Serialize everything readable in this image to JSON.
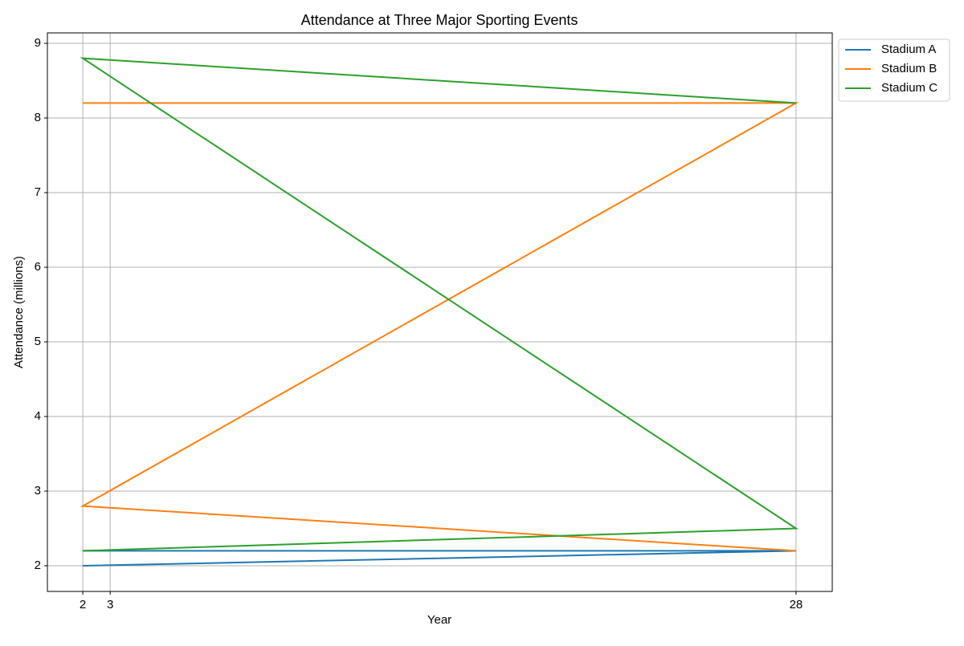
{
  "chart_data": {
    "type": "line",
    "title": "Attendance at Three Major Sporting Events",
    "x_label": "Year",
    "y_label": "Attendance (millions)",
    "series": [
      {
        "name": "Stadium A",
        "color": "#1f77b4",
        "x": [
          2,
          28,
          2,
          28
        ],
        "values": [
          2.0,
          2.2,
          2.2,
          2.2
        ]
      },
      {
        "name": "Stadium B",
        "color": "#ff7f0e",
        "x": [
          2,
          28,
          2,
          28
        ],
        "values": [
          8.2,
          8.2,
          2.8,
          2.2
        ]
      },
      {
        "name": "Stadium C",
        "color": "#2ca02c",
        "x": [
          28,
          2,
          28,
          2
        ],
        "values": [
          8.2,
          8.8,
          2.5,
          2.2
        ]
      }
    ],
    "xlim": [
      0.71,
      29.32
    ],
    "xticks": [
      2,
      3,
      28
    ],
    "ylim": [
      1.656,
      9.14
    ],
    "yticks": [
      2,
      3,
      4,
      5,
      6,
      7,
      8,
      9
    ],
    "grid": true,
    "legend": "outside-upper-right"
  }
}
